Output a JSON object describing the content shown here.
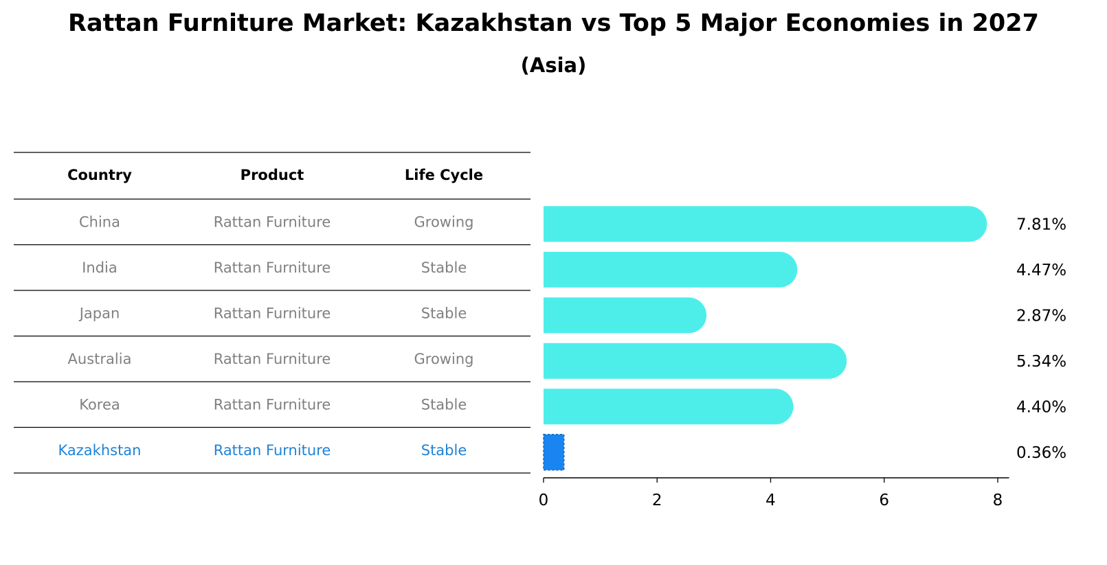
{
  "title": "Rattan Furniture Market: Kazakhstan vs Top 5 Major Economies in 2027",
  "subtitle": "(Asia)",
  "table": {
    "headers": [
      "Country",
      "Product",
      "Life Cycle"
    ],
    "rows": [
      {
        "country": "China",
        "product": "Rattan Furniture",
        "life_cycle": "Growing",
        "highlight": false
      },
      {
        "country": "India",
        "product": "Rattan Furniture",
        "life_cycle": "Stable",
        "highlight": false
      },
      {
        "country": "Japan",
        "product": "Rattan Furniture",
        "life_cycle": "Stable",
        "highlight": false
      },
      {
        "country": "Australia",
        "product": "Rattan Furniture",
        "life_cycle": "Growing",
        "highlight": false
      },
      {
        "country": "Korea",
        "product": "Rattan Furniture",
        "life_cycle": "Stable",
        "highlight": false
      },
      {
        "country": "Kazakhstan",
        "product": "Rattan Furniture",
        "life_cycle": "Stable",
        "highlight": true
      }
    ]
  },
  "chart_data": {
    "type": "bar",
    "orientation": "horizontal",
    "categories": [
      "China",
      "India",
      "Japan",
      "Australia",
      "Korea",
      "Kazakhstan"
    ],
    "values": [
      7.81,
      4.47,
      2.87,
      5.34,
      4.4,
      0.36
    ],
    "value_labels": [
      "7.81%",
      "4.47%",
      "2.87%",
      "5.34%",
      "4.40%",
      "0.36%"
    ],
    "xlim": [
      0,
      8.2
    ],
    "xticks": [
      0,
      2,
      4,
      6,
      8
    ],
    "xtick_labels": [
      "0",
      "2",
      "4",
      "6",
      "8"
    ],
    "grid": false,
    "legend": "none"
  },
  "colors": {
    "bar": "#4DEEEA",
    "highlight_bar": "#1A85F0",
    "highlight_text": "#1F83D6",
    "table_text": "#808080",
    "rule": "#000000"
  }
}
